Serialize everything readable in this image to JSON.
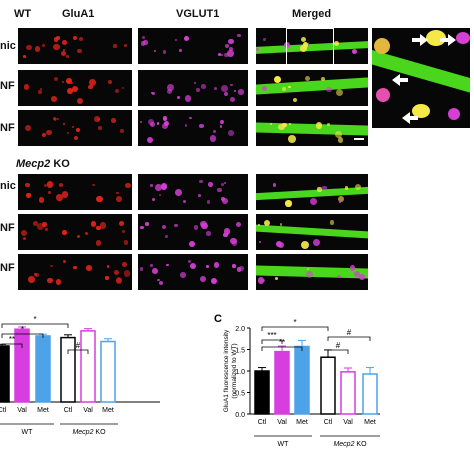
{
  "figure": {
    "top_labels": {
      "wt": "WT",
      "glua1": "GluA1",
      "vglut1": "VGLUT1",
      "merged": "Merged"
    },
    "ko_label": {
      "gene": "Mecp2",
      "suffix": "KO"
    },
    "row_labels": [
      "nic",
      "NF",
      "NF",
      "nic",
      "NF",
      "NF"
    ],
    "colors": {
      "glua1": "#e2231a",
      "vglut1": "#d43fd4",
      "dendrite": "#49d61c",
      "overlap": "#f5e94a",
      "arrow": "#ffffff",
      "background": "#070707"
    },
    "arrow_icons": [
      "right-arrow-icon",
      "left-arrow-icon",
      "left-arrow-icon",
      "right-arrow-icon"
    ]
  },
  "chart_data": [
    {
      "type": "bar",
      "panel_label": "",
      "ylabel": "",
      "categories": [
        "Ctl",
        "Val",
        "Met",
        "Ctl",
        "Val",
        "Met"
      ],
      "values": [
        1.0,
        1.3,
        1.18,
        1.15,
        1.27,
        1.08
      ],
      "errors": [
        0.03,
        0.04,
        0.03,
        0.05,
        0.04,
        0.05
      ],
      "ylim": [
        0.0,
        2.0
      ],
      "bar_colors": [
        "#000000",
        "#d63ee0",
        "#4ea3e8",
        "#ffffff",
        "#ffffff",
        "#ffffff"
      ],
      "edge_colors": [
        "#000000",
        "#d63ee0",
        "#4ea3e8",
        "#000000",
        "#d63ee0",
        "#4ea3e8"
      ],
      "groups": [
        {
          "name": "WT",
          "italic": false
        },
        {
          "name": "Mecp2",
          "suffix": "KO",
          "italic": true
        }
      ],
      "significance": [
        "*",
        "*",
        "**",
        "#"
      ]
    },
    {
      "type": "bar",
      "panel_label": "C",
      "ylabel": "GluA1 fluorescence intensity",
      "ylabel2": "(normalized to WT)",
      "categories": [
        "Ctl",
        "Val",
        "Met",
        "Ctl",
        "Val",
        "Met"
      ],
      "values": [
        1.0,
        1.45,
        1.57,
        1.32,
        0.98,
        0.93
      ],
      "errors": [
        0.08,
        0.13,
        0.14,
        0.17,
        0.09,
        0.15
      ],
      "ylim": [
        0.0,
        2.0
      ],
      "yticks": [
        "0.0",
        "0.5",
        "1.0",
        "1.5",
        "2.0"
      ],
      "bar_colors": [
        "#000000",
        "#d63ee0",
        "#4ea3e8",
        "#ffffff",
        "#ffffff",
        "#ffffff"
      ],
      "edge_colors": [
        "#000000",
        "#d63ee0",
        "#4ea3e8",
        "#000000",
        "#d63ee0",
        "#4ea3e8"
      ],
      "groups": [
        {
          "name": "WT",
          "italic": false
        },
        {
          "name": "Mecp2",
          "suffix": "KO",
          "italic": true
        }
      ],
      "significance": [
        "*",
        "***",
        "**",
        "#",
        "#"
      ]
    }
  ]
}
